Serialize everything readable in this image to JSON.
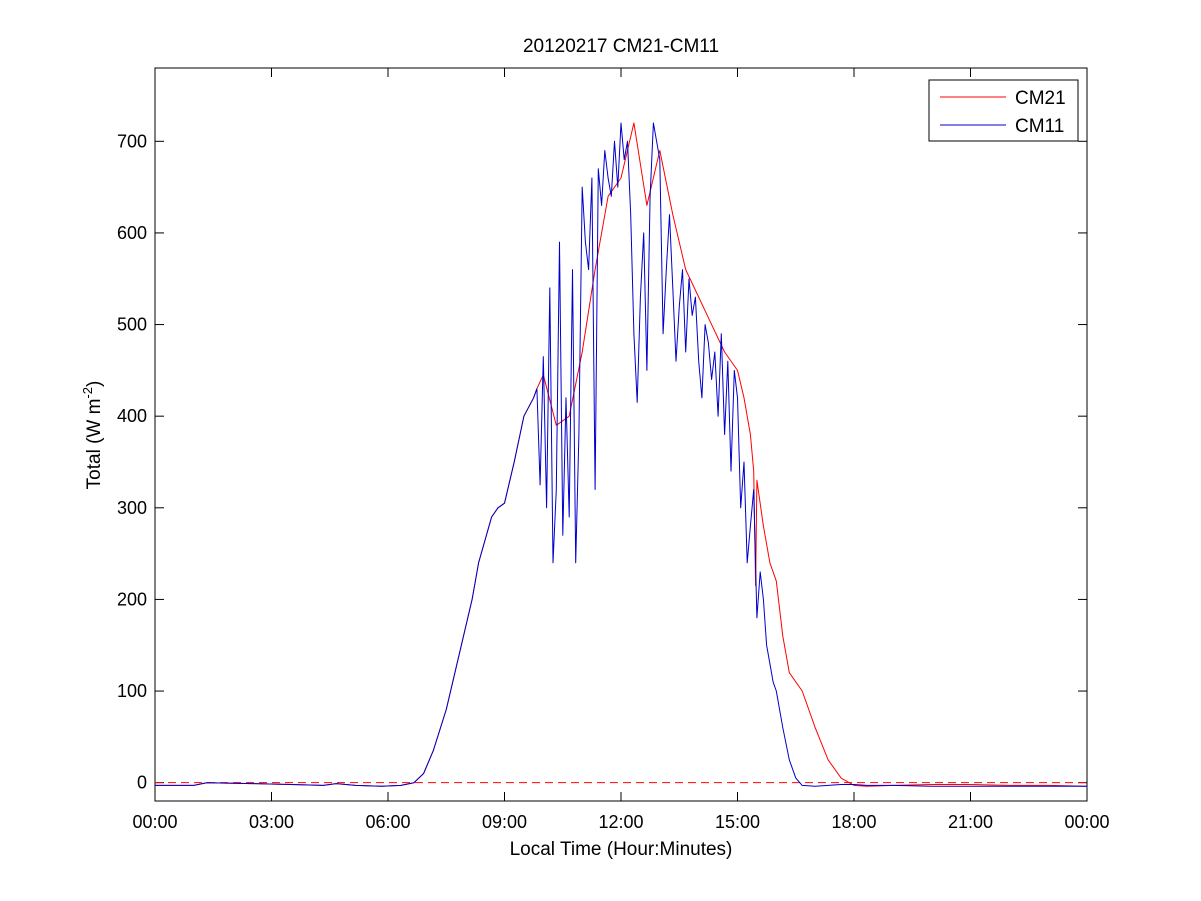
{
  "chart_data": {
    "type": "line",
    "title": "20120217 CM21-CM11",
    "xlabel": "Local Time (Hour:Minutes)",
    "ylabel_main": "Total (W m",
    "ylabel_sup": "-2",
    "ylabel_close": ")",
    "xlim": [
      "00:00",
      "24:00"
    ],
    "ylim": [
      -20,
      780
    ],
    "xticks": [
      "00:00",
      "03:00",
      "06:00",
      "09:00",
      "12:00",
      "15:00",
      "18:00",
      "21:00",
      "00:00"
    ],
    "yticks": [
      0,
      100,
      200,
      300,
      400,
      500,
      600,
      700
    ],
    "grid": false,
    "legend_position": "top-right",
    "reference_line": {
      "y": 0,
      "color": "#ff0000",
      "style": "dashed"
    },
    "series": [
      {
        "name": "CM21",
        "color": "#ff0000",
        "x": [
          "00:00",
          "01:00",
          "01:20",
          "02:30",
          "03:30",
          "04:20",
          "04:40",
          "05:10",
          "05:50",
          "06:20",
          "06:40",
          "06:55",
          "07:10",
          "07:30",
          "07:50",
          "08:10",
          "08:20",
          "08:40",
          "08:50",
          "09:00",
          "09:15",
          "09:30",
          "09:45",
          "09:50",
          "10:00",
          "10:20",
          "10:40",
          "11:00",
          "11:20",
          "11:40",
          "12:00",
          "12:20",
          "12:40",
          "13:00",
          "13:20",
          "13:40",
          "14:00",
          "14:20",
          "14:40",
          "15:00",
          "15:10",
          "15:20",
          "15:25",
          "15:28",
          "15:30",
          "15:40",
          "15:50",
          "16:00",
          "16:10",
          "16:20",
          "16:40",
          "17:00",
          "17:20",
          "17:40",
          "18:00",
          "18:20",
          "19:00",
          "20:00",
          "21:00",
          "22:00",
          "23:00",
          "24:00"
        ],
        "y": [
          -3,
          -3,
          0,
          -1,
          -2,
          -3,
          -1,
          -3,
          -4,
          -3,
          0,
          10,
          35,
          80,
          140,
          200,
          240,
          290,
          300,
          305,
          350,
          400,
          420,
          430,
          445,
          390,
          400,
          470,
          560,
          640,
          660,
          720,
          630,
          690,
          620,
          560,
          530,
          500,
          470,
          450,
          420,
          380,
          340,
          215,
          330,
          280,
          240,
          220,
          160,
          120,
          100,
          60,
          25,
          5,
          -3,
          -4,
          -3,
          -2,
          -2,
          -3,
          -3,
          -4
        ]
      },
      {
        "name": "CM11",
        "color": "#0000cc",
        "x": [
          "00:00",
          "01:00",
          "01:20",
          "02:30",
          "03:30",
          "04:20",
          "04:40",
          "05:10",
          "05:50",
          "06:20",
          "06:40",
          "06:55",
          "07:10",
          "07:30",
          "07:50",
          "08:10",
          "08:20",
          "08:40",
          "08:50",
          "09:00",
          "09:15",
          "09:30",
          "09:45",
          "09:50",
          "09:55",
          "10:00",
          "10:05",
          "10:10",
          "10:15",
          "10:20",
          "10:25",
          "10:30",
          "10:35",
          "10:40",
          "10:45",
          "10:50",
          "10:55",
          "11:00",
          "11:05",
          "11:10",
          "11:15",
          "11:20",
          "11:25",
          "11:30",
          "11:35",
          "11:40",
          "11:45",
          "11:50",
          "11:55",
          "12:00",
          "12:05",
          "12:10",
          "12:15",
          "12:20",
          "12:25",
          "12:30",
          "12:35",
          "12:40",
          "12:45",
          "12:50",
          "12:55",
          "13:00",
          "13:05",
          "13:10",
          "13:15",
          "13:20",
          "13:25",
          "13:30",
          "13:35",
          "13:40",
          "13:45",
          "13:50",
          "13:55",
          "14:00",
          "14:05",
          "14:10",
          "14:15",
          "14:20",
          "14:25",
          "14:30",
          "14:35",
          "14:40",
          "14:45",
          "14:50",
          "14:55",
          "15:00",
          "15:05",
          "15:10",
          "15:15",
          "15:20",
          "15:25",
          "15:30",
          "15:35",
          "15:40",
          "15:45",
          "15:50",
          "15:55",
          "16:00",
          "16:10",
          "16:20",
          "16:30",
          "16:40",
          "17:00",
          "17:20",
          "17:40",
          "18:00",
          "18:20",
          "19:00",
          "20:00",
          "21:00",
          "22:00",
          "23:00",
          "24:00"
        ],
        "y": [
          -3,
          -3,
          0,
          -1,
          -2,
          -3,
          -1,
          -3,
          -4,
          -3,
          0,
          10,
          35,
          80,
          140,
          200,
          240,
          290,
          300,
          305,
          350,
          400,
          420,
          430,
          325,
          465,
          300,
          540,
          240,
          320,
          590,
          270,
          420,
          290,
          560,
          240,
          380,
          650,
          590,
          560,
          660,
          320,
          670,
          630,
          690,
          660,
          640,
          700,
          650,
          720,
          680,
          700,
          620,
          490,
          415,
          530,
          600,
          450,
          640,
          720,
          700,
          680,
          490,
          560,
          620,
          540,
          460,
          520,
          560,
          470,
          550,
          510,
          530,
          460,
          420,
          500,
          480,
          440,
          470,
          400,
          490,
          380,
          460,
          340,
          450,
          420,
          300,
          350,
          240,
          280,
          320,
          180,
          230,
          200,
          150,
          130,
          110,
          100,
          60,
          25,
          5,
          -3,
          -4,
          -3,
          -2,
          -2,
          -3,
          -3,
          -4,
          -4,
          -4,
          -4,
          -4
        ]
      }
    ]
  }
}
